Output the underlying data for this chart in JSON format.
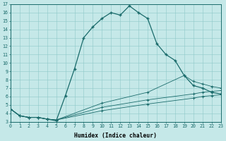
{
  "xlabel": "Humidex (Indice chaleur)",
  "xlim": [
    0,
    23
  ],
  "ylim": [
    3,
    17
  ],
  "xticks": [
    0,
    1,
    2,
    3,
    4,
    5,
    6,
    7,
    8,
    9,
    10,
    11,
    12,
    13,
    14,
    15,
    16,
    17,
    18,
    19,
    20,
    21,
    22,
    23
  ],
  "yticks": [
    3,
    4,
    5,
    6,
    7,
    8,
    9,
    10,
    11,
    12,
    13,
    14,
    15,
    16,
    17
  ],
  "bg_color": "#c5e8e8",
  "line_color": "#1a6b6b",
  "line_main_x": [
    0,
    1,
    2,
    3,
    4,
    5,
    6,
    7,
    8,
    9,
    10,
    11,
    12,
    13,
    14,
    15,
    16,
    17,
    18,
    19,
    20,
    21,
    22,
    23
  ],
  "line_main_y": [
    4.5,
    3.7,
    3.5,
    3.5,
    3.3,
    3.1,
    6.1,
    9.3,
    13.0,
    14.3,
    15.3,
    16.0,
    15.7,
    16.8,
    16.0,
    15.3,
    12.3,
    11.0,
    10.3,
    8.5,
    7.3,
    7.0,
    6.5,
    6.3
  ],
  "line2_x": [
    0,
    1,
    2,
    3,
    4,
    5,
    10,
    15,
    20,
    21,
    22,
    23
  ],
  "line2_y": [
    4.5,
    3.7,
    3.5,
    3.5,
    3.3,
    3.2,
    4.3,
    5.1,
    5.8,
    6.0,
    6.1,
    6.2
  ],
  "line3_x": [
    0,
    1,
    2,
    3,
    4,
    5,
    10,
    15,
    20,
    21,
    22,
    23
  ],
  "line3_y": [
    4.5,
    3.7,
    3.5,
    3.5,
    3.3,
    3.2,
    4.7,
    5.6,
    6.3,
    6.5,
    6.6,
    6.7
  ],
  "line4_x": [
    0,
    1,
    2,
    3,
    4,
    5,
    10,
    15,
    19,
    20,
    21,
    22,
    23
  ],
  "line4_y": [
    4.5,
    3.7,
    3.5,
    3.5,
    3.3,
    3.2,
    5.2,
    6.5,
    8.5,
    7.8,
    7.5,
    7.2,
    7.0
  ]
}
